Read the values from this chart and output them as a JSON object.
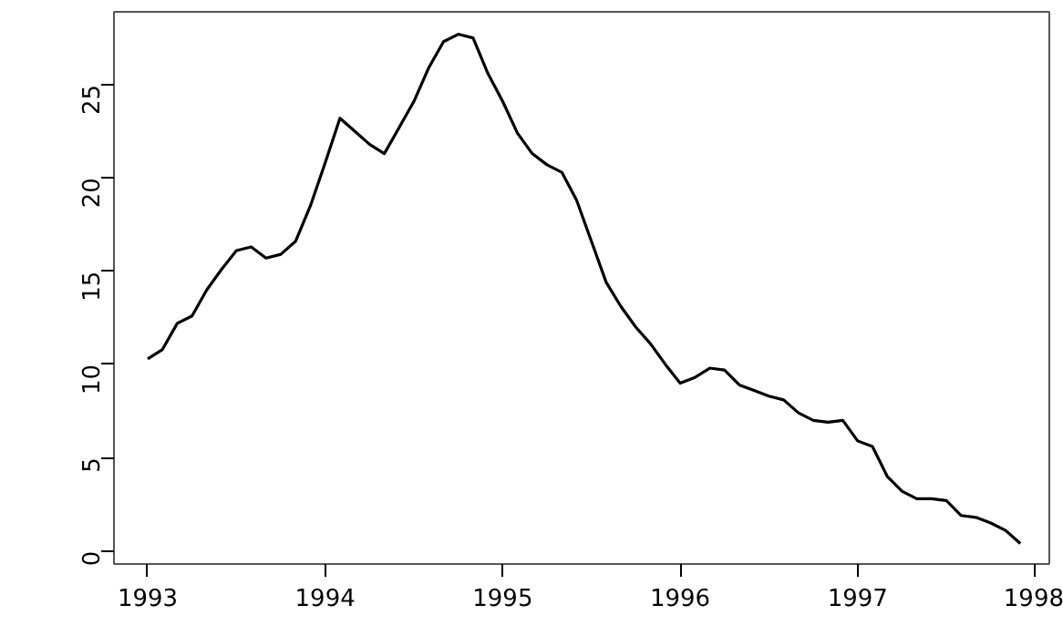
{
  "chart_data": {
    "type": "line",
    "x": [
      1993,
      1993.0833,
      1993.1667,
      1993.25,
      1993.3333,
      1993.4167,
      1993.5,
      1993.5833,
      1993.6667,
      1993.75,
      1993.8333,
      1993.9167,
      1994,
      1994.0833,
      1994.1667,
      1994.25,
      1994.3333,
      1994.4167,
      1994.5,
      1994.5833,
      1994.6667,
      1994.75,
      1994.8333,
      1994.9167,
      1995,
      1995.0833,
      1995.1667,
      1995.25,
      1995.3333,
      1995.4167,
      1995.5,
      1995.5833,
      1995.6667,
      1995.75,
      1995.8333,
      1995.9167,
      1996,
      1996.0833,
      1996.1667,
      1996.25,
      1996.3333,
      1996.4167,
      1996.5,
      1996.5833,
      1996.6667,
      1996.75,
      1996.8333,
      1996.9167,
      1997,
      1997.0833,
      1997.1667,
      1997.25,
      1997.3333,
      1997.4167,
      1997.5,
      1997.5833,
      1997.6667,
      1997.75,
      1997.8333,
      1997.9167
    ],
    "series": [
      {
        "color": "#000000",
        "values": [
          10.3,
          10.8,
          12.2,
          12.6,
          14,
          15.1,
          16.1,
          16.3,
          15.7,
          15.9,
          16.6,
          18.5,
          20.8,
          23.2,
          22.5,
          21.8,
          21.3,
          22.7,
          24.1,
          25.9,
          27.3,
          27.7,
          27.5,
          25.6,
          24.1,
          22.4,
          21.3,
          20.7,
          20.3,
          18.8,
          16.6,
          14.4,
          13.1,
          12,
          11.1,
          10,
          9,
          9.3,
          9.8,
          9.7,
          8.9,
          8.6,
          8.3,
          8.1,
          7.4,
          7,
          6.9,
          7,
          5.9,
          5.6,
          4,
          3.2,
          2.8,
          2.8,
          2.7,
          1.9,
          1.8,
          1.5,
          1.1,
          0.4
        ]
      }
    ],
    "xlim": [
      1992.81,
      1998.08
    ],
    "ylim": [
      -0.7,
      28.9
    ],
    "xticks": [
      1993,
      1994,
      1995,
      1996,
      1997,
      1998
    ],
    "yticks": [
      0,
      5,
      10,
      15,
      20,
      25
    ],
    "grid": false,
    "marker": "none",
    "line_style": "solid"
  }
}
